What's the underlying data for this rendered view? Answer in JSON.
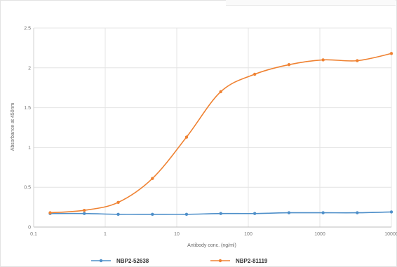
{
  "chart_data": {
    "type": "line",
    "title": "",
    "xlabel": "Antibody conc. (ng/ml)",
    "ylabel": "Absorbance at 450nm",
    "x_scale": "log",
    "xlim": [
      0.1,
      10000
    ],
    "ylim": [
      0,
      2.5
    ],
    "x_ticks": [
      "0.1",
      "1",
      "10",
      "100",
      "1000",
      "10000"
    ],
    "y_ticks": [
      "0",
      "0.5",
      "1",
      "1.5",
      "2",
      "2.5"
    ],
    "grid": true,
    "legend_position": "bottom",
    "series": [
      {
        "name": "NBP2-52638",
        "color": "#4e8fc9",
        "x": [
          0.17,
          0.51,
          1.52,
          4.57,
          13.7,
          41.2,
          123,
          370,
          1111,
          3333,
          10000
        ],
        "y": [
          0.17,
          0.17,
          0.16,
          0.16,
          0.16,
          0.17,
          0.17,
          0.18,
          0.18,
          0.18,
          0.19
        ]
      },
      {
        "name": "NBP2-81119",
        "color": "#ef8232",
        "x": [
          0.17,
          0.51,
          1.52,
          4.57,
          13.7,
          41.2,
          123,
          370,
          1111,
          3333,
          10000
        ],
        "y": [
          0.18,
          0.21,
          0.31,
          0.61,
          1.13,
          1.7,
          1.92,
          2.04,
          2.1,
          2.09,
          2.18
        ]
      }
    ]
  }
}
